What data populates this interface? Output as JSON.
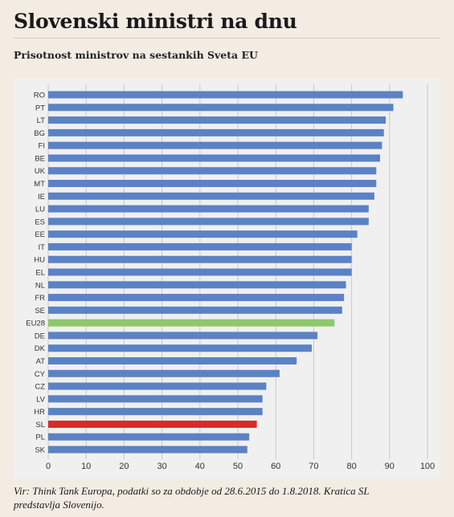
{
  "header": {
    "title": "Slovenski ministri na dnu",
    "subtitle": "Prisotnost ministrov na sestankih Sveta EU"
  },
  "colors": {
    "default_bar": "#5b82c4",
    "eu_average_bar": "#8ec86a",
    "highlight_bar": "#e0272a",
    "background": "#f3ece3",
    "panel": "#f0f0f0"
  },
  "chart_data": {
    "type": "bar",
    "orientation": "horizontal",
    "title": "",
    "xlabel": "",
    "ylabel": "",
    "xlim": [
      0,
      100
    ],
    "xticks": [
      0,
      10,
      20,
      30,
      40,
      50,
      60,
      70,
      80,
      90,
      100
    ],
    "grid": true,
    "categories": [
      "RO",
      "PT",
      "LT",
      "BG",
      "FI",
      "BE",
      "UK",
      "MT",
      "IE",
      "LU",
      "ES",
      "EE",
      "IT",
      "HU",
      "EL",
      "NL",
      "FR",
      "SE",
      "EU28",
      "DE",
      "DK",
      "AT",
      "CY",
      "CZ",
      "LV",
      "HR",
      "SL",
      "PL",
      "SK"
    ],
    "values": [
      93.5,
      91,
      89,
      88.5,
      88,
      87.5,
      86.5,
      86.5,
      86,
      84.5,
      84.5,
      81.5,
      80,
      80,
      80,
      78.5,
      78,
      77.5,
      75.5,
      71,
      69.5,
      65.5,
      61,
      57.5,
      56.5,
      56.5,
      55,
      53,
      52.5
    ],
    "highlights": {
      "EU28": "eu_average_bar",
      "SL": "highlight_bar"
    }
  },
  "footer": {
    "source_line1": "Vir: Think Tank Europa, podatki so za obdobje od 28.6.2015 do 1.8.2018. Kratica SL",
    "source_line2": "predstavlja Slovenijo."
  }
}
